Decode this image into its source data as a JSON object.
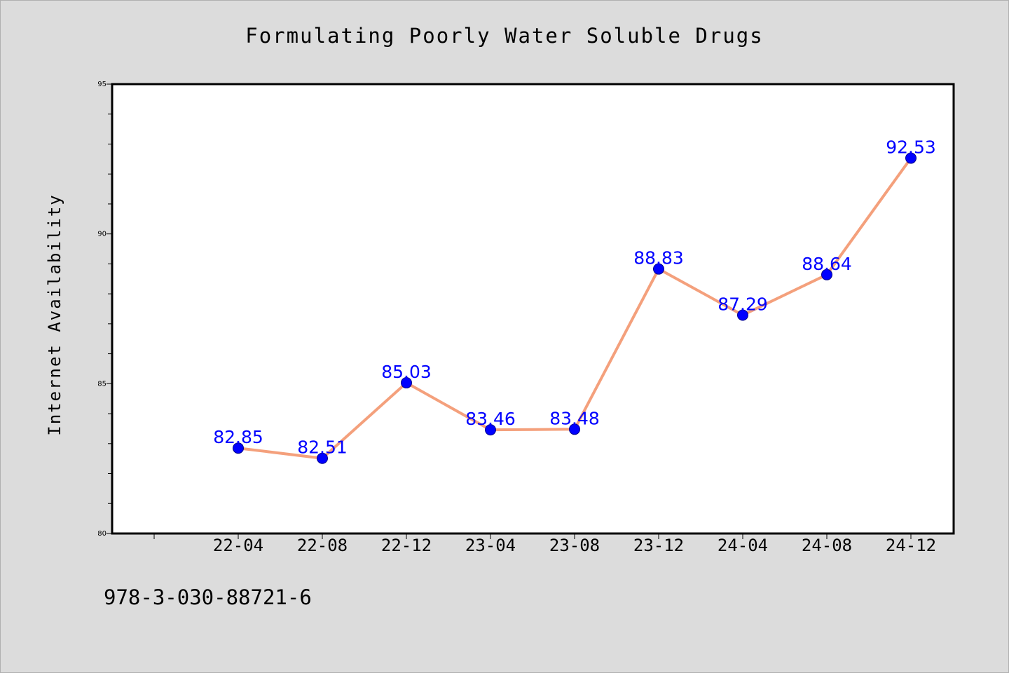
{
  "chart_data": {
    "type": "line",
    "title": "Formulating Poorly Water Soluble Drugs",
    "xlabel": "",
    "ylabel": "Internet Availability",
    "categories": [
      "22-04",
      "22-08",
      "22-12",
      "23-04",
      "23-08",
      "23-12",
      "24-04",
      "24-08",
      "24-12"
    ],
    "series": [
      {
        "values": [
          82.85,
          82.51,
          85.03,
          83.46,
          83.48,
          88.83,
          87.29,
          88.64,
          92.53
        ],
        "labels": [
          "82.85",
          "82.51",
          "85.03",
          "83.46",
          "83.48",
          "88.83",
          "87.29",
          "88.64",
          "92.53"
        ]
      }
    ],
    "ylim": [
      80,
      95
    ],
    "yticks": [
      "80",
      "85",
      "90",
      "95"
    ],
    "y_minor_step": 1,
    "grid": false,
    "legend": "none",
    "colors": {
      "line": "#f4a07c",
      "marker": "#0000ff",
      "data_label": "#0000ff",
      "plot_background": "#ffffff",
      "page_background": "#dcdcdc"
    }
  },
  "footer": {
    "isbn": "978-3-030-88721-6"
  }
}
